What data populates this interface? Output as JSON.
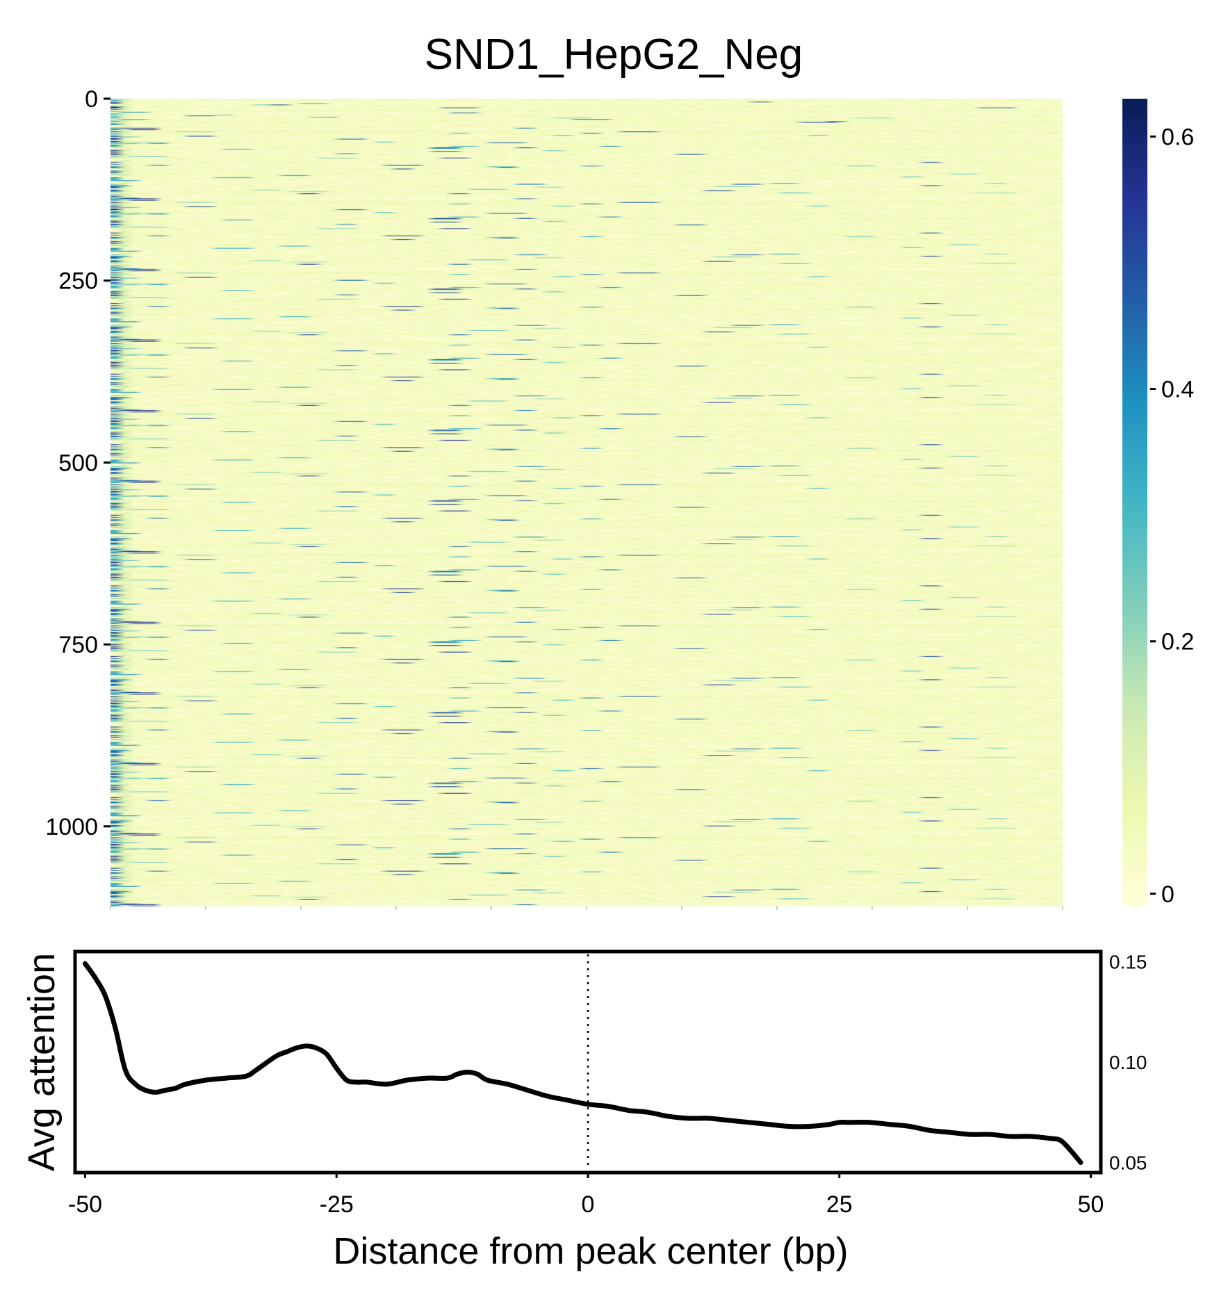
{
  "chart_data": [
    {
      "type": "heatmap",
      "title": "SND1_HepG2_Neg",
      "rows": 1110,
      "columns": 101,
      "y_ticks": [
        "0",
        "250",
        "500",
        "750",
        "1000"
      ],
      "y_tick_values": [
        0,
        250,
        500,
        750,
        1000
      ],
      "x_range": [
        -50,
        50
      ],
      "x_tick_values": [
        -50,
        -40,
        -30,
        -20,
        -10,
        0,
        10,
        20,
        30,
        40,
        50
      ],
      "colorbar": {
        "ticks": [
          "0",
          "0.2",
          "0.4",
          "0.6"
        ],
        "tick_values": [
          0,
          0.2,
          0.4,
          0.6
        ],
        "range": [
          -0.01,
          0.63
        ],
        "colormap": [
          "#ffffd9",
          "#edf8b1",
          "#c7e9b4",
          "#7fcdbb",
          "#41b6c4",
          "#1d91c0",
          "#225ea8",
          "#253494",
          "#081d58"
        ]
      },
      "description_of_pattern": "mostly near-zero values with sparse high-attention streaks, denser toward the left edge (-50 to -25 bp)"
    },
    {
      "type": "line",
      "xlabel": "Distance from peak center (bp)",
      "ylabel": "Avg attention",
      "x_ticks": [
        "-50",
        "-25",
        "0",
        "25",
        "50"
      ],
      "x_tick_values": [
        -50,
        -25,
        0,
        25,
        50
      ],
      "y_ticks": [
        "0.05",
        "0.10",
        "0.15"
      ],
      "y_tick_values": [
        0.05,
        0.1,
        0.15
      ],
      "xlim": [
        -51,
        51
      ],
      "ylim": [
        0.045,
        0.155
      ],
      "reference_line_x": 0,
      "line_color": "#000000",
      "x": [
        -50,
        -49,
        -48,
        -47,
        -46,
        -45,
        -44,
        -43,
        -42,
        -41,
        -40,
        -38,
        -36,
        -34,
        -33,
        -31,
        -30,
        -29,
        -28,
        -27,
        -26,
        -25,
        -24,
        -23,
        -22,
        -20,
        -18,
        -16,
        -14,
        -13,
        -12,
        -11,
        -10,
        -8,
        -6,
        -4,
        -2,
        0,
        2,
        4,
        6,
        8,
        10,
        12,
        14,
        16,
        18,
        20,
        22,
        24,
        25,
        26,
        28,
        30,
        32,
        34,
        36,
        38,
        40,
        42,
        44,
        46,
        47,
        48,
        49
      ],
      "y": [
        0.149,
        0.142,
        0.133,
        0.117,
        0.096,
        0.089,
        0.086,
        0.085,
        0.086,
        0.087,
        0.089,
        0.091,
        0.092,
        0.093,
        0.096,
        0.103,
        0.105,
        0.107,
        0.108,
        0.107,
        0.104,
        0.097,
        0.091,
        0.09,
        0.09,
        0.089,
        0.091,
        0.092,
        0.092,
        0.094,
        0.095,
        0.094,
        0.091,
        0.089,
        0.086,
        0.083,
        0.081,
        0.079,
        0.078,
        0.076,
        0.075,
        0.073,
        0.072,
        0.072,
        0.071,
        0.07,
        0.069,
        0.068,
        0.068,
        0.069,
        0.07,
        0.07,
        0.07,
        0.069,
        0.068,
        0.066,
        0.065,
        0.064,
        0.064,
        0.063,
        0.063,
        0.062,
        0.061,
        0.056,
        0.05
      ]
    }
  ]
}
